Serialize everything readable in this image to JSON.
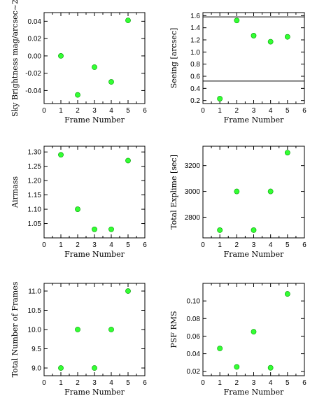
{
  "chart_data": [
    {
      "type": "scatter",
      "xlabel": "Frame Number",
      "ylabel": "Sky Brightness mag/arcsec~2",
      "xlim": [
        0,
        6
      ],
      "ylim": [
        -0.055,
        0.05
      ],
      "xticks": [
        0,
        1,
        2,
        3,
        4,
        5,
        6
      ],
      "yticks": [
        -0.04,
        -0.02,
        0.0,
        0.02,
        0.04
      ],
      "ytick_labels": [
        "-0.04",
        "-0.02",
        "0.00",
        "0.02",
        "0.04"
      ],
      "x": [
        1,
        2,
        3,
        4,
        5
      ],
      "y": [
        0.0,
        -0.045,
        -0.013,
        -0.03,
        0.041
      ],
      "marker_color": "#33ff33",
      "marker_edge": "#009900"
    },
    {
      "type": "scatter",
      "xlabel": "Frame Number",
      "ylabel": "Seeing [arcsec]",
      "xlim": [
        0,
        6
      ],
      "ylim": [
        0.15,
        1.65
      ],
      "xticks": [
        0,
        1,
        2,
        3,
        4,
        5,
        6
      ],
      "yticks": [
        0.2,
        0.4,
        0.6,
        0.8,
        1.0,
        1.2,
        1.4,
        1.6
      ],
      "ytick_labels": [
        "0.2",
        "0.4",
        "0.6",
        "0.8",
        "1.0",
        "1.2",
        "1.4",
        "1.6"
      ],
      "x": [
        1,
        2,
        3,
        4,
        5
      ],
      "y": [
        0.23,
        1.52,
        1.27,
        1.17,
        1.25
      ],
      "hlines": [
        0.52,
        1.58
      ],
      "marker_color": "#33ff33",
      "marker_edge": "#009900"
    },
    {
      "type": "scatter",
      "xlabel": "Frame Number",
      "ylabel": "Airmass",
      "xlim": [
        0,
        6
      ],
      "ylim": [
        1.0,
        1.32
      ],
      "xticks": [
        0,
        1,
        2,
        3,
        4,
        5,
        6
      ],
      "yticks": [
        1.05,
        1.1,
        1.15,
        1.2,
        1.25,
        1.3
      ],
      "ytick_labels": [
        "1.05",
        "1.10",
        "1.15",
        "1.20",
        "1.25",
        "1.30"
      ],
      "x": [
        1,
        2,
        3,
        4,
        5
      ],
      "y": [
        1.29,
        1.1,
        1.03,
        1.03,
        1.27
      ],
      "marker_color": "#33ff33",
      "marker_edge": "#009900"
    },
    {
      "type": "scatter",
      "xlabel": "Frame Number",
      "ylabel": "Total Explime [sec]",
      "xlim": [
        0,
        6
      ],
      "ylim": [
        2640,
        3350
      ],
      "xticks": [
        0,
        1,
        2,
        3,
        4,
        5,
        6
      ],
      "yticks": [
        2800,
        3000,
        3200
      ],
      "ytick_labels": [
        "2800",
        "3000",
        "3200"
      ],
      "x": [
        1,
        2,
        3,
        4,
        5
      ],
      "y": [
        2700,
        3000,
        2700,
        3000,
        3300
      ],
      "marker_color": "#33ff33",
      "marker_edge": "#009900"
    },
    {
      "type": "scatter",
      "xlabel": "Frame Number",
      "ylabel": "Total Number of Frames",
      "xlim": [
        0,
        6
      ],
      "ylim": [
        8.8,
        11.2
      ],
      "xticks": [
        0,
        1,
        2,
        3,
        4,
        5,
        6
      ],
      "yticks": [
        9.0,
        9.5,
        10.0,
        10.5,
        11.0
      ],
      "ytick_labels": [
        "9.0",
        "9.5",
        "10.0",
        "10.5",
        "11.0"
      ],
      "x": [
        1,
        2,
        3,
        4,
        5
      ],
      "y": [
        9,
        10,
        9,
        10,
        11
      ],
      "marker_color": "#33ff33",
      "marker_edge": "#009900"
    },
    {
      "type": "scatter",
      "xlabel": "Frame Number",
      "ylabel": "PSF RMS",
      "xlim": [
        0,
        6
      ],
      "ylim": [
        0.015,
        0.12
      ],
      "xticks": [
        0,
        1,
        2,
        3,
        4,
        5,
        6
      ],
      "yticks": [
        0.02,
        0.04,
        0.06,
        0.08,
        0.1
      ],
      "ytick_labels": [
        "0.02",
        "0.04",
        "0.06",
        "0.08",
        "0.10"
      ],
      "x": [
        1,
        2,
        3,
        4,
        5
      ],
      "y": [
        0.046,
        0.025,
        0.065,
        0.024,
        0.108
      ],
      "marker_color": "#33ff33",
      "marker_edge": "#009900"
    }
  ]
}
